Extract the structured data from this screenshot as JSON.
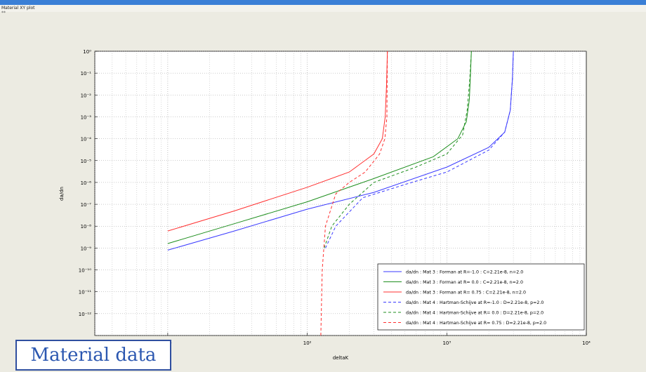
{
  "window": {
    "title": "Material XY plot",
    "subtitle": "**"
  },
  "caption": "Material data",
  "colors": {
    "titlebar": "#3a7fd6",
    "background": "#ecebe2",
    "blue": "#3a3aff",
    "green": "#1f8f1f",
    "red": "#ff3030"
  },
  "chart_data": {
    "type": "line",
    "xlabel": "deltaK",
    "ylabel": "da/dn",
    "xscale": "log",
    "yscale": "log",
    "xlim": [
      3,
      10000
    ],
    "ylim": [
      1e-13,
      1
    ],
    "grid": true,
    "x_ticks": [
      {
        "value": 10,
        "label": "10¹"
      },
      {
        "value": 100,
        "label": "10²"
      },
      {
        "value": 1000,
        "label": "10³"
      },
      {
        "value": 10000,
        "label": "10⁴"
      }
    ],
    "y_ticks": [
      {
        "value": 1,
        "label": "10⁰"
      },
      {
        "value": 0.1,
        "label": "10⁻¹"
      },
      {
        "value": 0.01,
        "label": "10⁻²"
      },
      {
        "value": 0.001,
        "label": "10⁻³"
      },
      {
        "value": 0.0001,
        "label": "10⁻⁴"
      },
      {
        "value": 1e-05,
        "label": "10⁻⁵"
      },
      {
        "value": 1e-06,
        "label": "10⁻⁶"
      },
      {
        "value": 1e-07,
        "label": "10⁻⁷"
      },
      {
        "value": 1e-08,
        "label": "10⁻⁸"
      },
      {
        "value": 1e-09,
        "label": "10⁻⁹"
      },
      {
        "value": 1e-10,
        "label": "10⁻¹⁰"
      },
      {
        "value": 1e-11,
        "label": "10⁻¹¹"
      },
      {
        "value": 1e-12,
        "label": "10⁻¹²"
      }
    ],
    "legend_position": "bottom-right",
    "series": [
      {
        "name": "da/dn : Mat 3 : Forman at R=-1.0 : C=2.21e-8, n=2.0",
        "color": "#3a3aff",
        "style": "solid",
        "x": [
          10,
          30,
          100,
          300,
          1000,
          2000,
          2600,
          2850,
          2950,
          3000
        ],
        "y": [
          8e-10,
          6e-09,
          6e-08,
          3.5e-07,
          5e-06,
          4e-05,
          0.0002,
          0.002,
          0.05,
          1
        ]
      },
      {
        "name": "da/dn : Mat 3 : Forman at R= 0.0 : C=2.21e-8, n=2.0",
        "color": "#1f8f1f",
        "style": "solid",
        "x": [
          10,
          30,
          100,
          300,
          800,
          1200,
          1380,
          1450,
          1480,
          1500
        ],
        "y": [
          1.6e-09,
          1.3e-08,
          1.3e-07,
          1.5e-06,
          1.5e-05,
          0.0001,
          0.0006,
          0.006,
          0.1,
          1
        ]
      },
      {
        "name": "da/dn : Mat 3 : Forman at R= 0.75 : C=2.21e-8, n=2.0",
        "color": "#ff3030",
        "style": "solid",
        "x": [
          10,
          30,
          100,
          200,
          300,
          345,
          362,
          370,
          375
        ],
        "y": [
          6e-09,
          5e-08,
          6e-07,
          3e-06,
          2e-05,
          0.0001,
          0.001,
          0.03,
          1
        ]
      },
      {
        "name": "da/dn : Mat 4 : Hartman-Schijve at R=-1.0 : D=2.21e-8, p=2.0",
        "color": "#3a3aff",
        "style": "dashed",
        "x": [
          135,
          160,
          250,
          500,
          1000,
          2000,
          2600,
          2850,
          2950,
          3000
        ],
        "y": [
          1e-09,
          1e-08,
          2e-07,
          8e-07,
          3e-06,
          3e-05,
          0.0002,
          0.002,
          0.05,
          1
        ]
      },
      {
        "name": "da/dn : Mat 4 : Hartman-Schijve at R= 0.0 : D=2.21e-8, p=2.0",
        "color": "#1f8f1f",
        "style": "dashed",
        "x": [
          132,
          150,
          200,
          300,
          600,
          1000,
          1300,
          1400,
          1460,
          1500
        ],
        "y": [
          1e-09,
          1e-08,
          1e-07,
          1e-06,
          5e-06,
          2e-05,
          0.00015,
          0.002,
          0.05,
          1
        ]
      },
      {
        "name": "da/dn : Mat 4 : Hartman-Schijve at R= 0.75 : D=2.21e-8, p=2.0",
        "color": "#ff3030",
        "style": "dashed",
        "x": [
          125,
          128,
          135,
          160,
          200,
          260,
          330,
          360,
          372,
          375
        ],
        "y": [
          1e-13,
          1e-10,
          1e-08,
          3e-07,
          1e-06,
          3e-06,
          2e-05,
          0.0001,
          0.001,
          1
        ]
      }
    ]
  }
}
